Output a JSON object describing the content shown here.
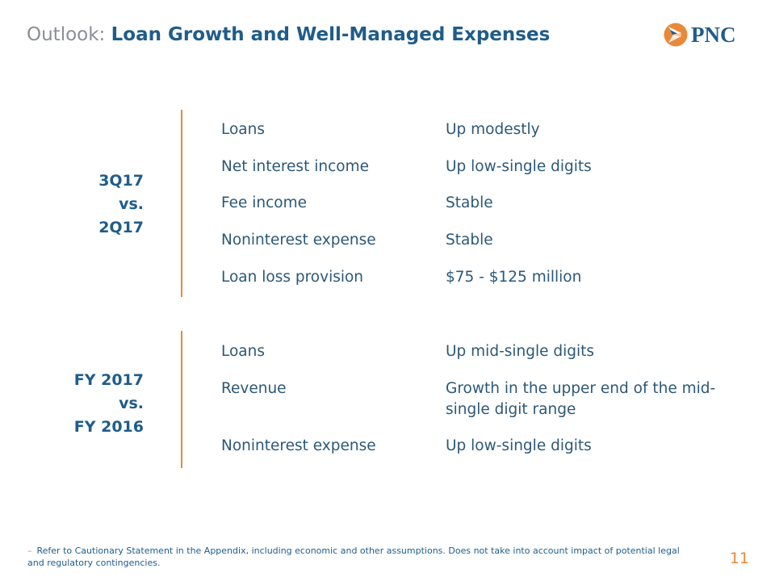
{
  "title": {
    "prefix": "Outlook:",
    "main": "Loan Growth and Well-Managed Expenses"
  },
  "logo": {
    "text": "PNC",
    "icon": "pnc-logo-icon",
    "colors": {
      "orange": "#e8893a",
      "blue": "#1f5c8b"
    }
  },
  "sections": [
    {
      "label": [
        "3Q17",
        "vs.",
        "2Q17"
      ],
      "rows": [
        {
          "item": "Loans",
          "value": "Up modestly"
        },
        {
          "item": "Net interest income",
          "value": "Up low-single digits"
        },
        {
          "item": "Fee income",
          "value": "Stable"
        },
        {
          "item": "Noninterest expense",
          "value": "Stable"
        },
        {
          "item": "Loan loss provision",
          "value": "$75 - $125 million"
        }
      ]
    },
    {
      "label": [
        "FY 2017",
        "vs.",
        "FY 2016"
      ],
      "rows": [
        {
          "item": "Loans",
          "value": "Up mid-single digits"
        },
        {
          "item": "Revenue",
          "value": "Growth in the upper end of the mid-single digit range"
        },
        {
          "item": "Noninterest expense",
          "value": "Up low-single digits"
        }
      ]
    }
  ],
  "footnote": "Refer to Cautionary Statement in the Appendix, including economic and other assumptions. Does not take into account impact of potential legal and regulatory contingencies.",
  "page_number": "11"
}
